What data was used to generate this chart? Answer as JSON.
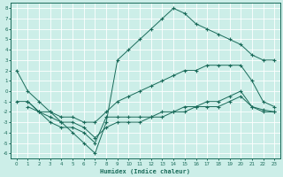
{
  "xlabel": "Humidex (Indice chaleur)",
  "bg_color": "#cceee8",
  "line_color": "#1a6b5a",
  "xlim": [
    -0.5,
    23.5
  ],
  "ylim": [
    -6.5,
    8.5
  ],
  "yticks": [
    -6,
    -5,
    -4,
    -3,
    -2,
    -1,
    0,
    1,
    2,
    3,
    4,
    5,
    6,
    7,
    8
  ],
  "xticks": [
    0,
    1,
    2,
    3,
    4,
    5,
    6,
    7,
    8,
    9,
    10,
    11,
    12,
    13,
    14,
    15,
    16,
    17,
    18,
    19,
    20,
    21,
    22,
    23
  ],
  "line1_x": [
    0,
    1,
    2,
    3,
    4,
    5,
    6,
    7,
    8,
    9,
    10,
    11,
    12,
    13,
    14,
    15,
    16,
    17,
    18,
    19,
    20,
    21,
    22,
    23
  ],
  "line1_y": [
    2,
    0,
    -1,
    -2,
    -3,
    -4,
    -5,
    -6,
    -3,
    3,
    4,
    5,
    6,
    7,
    8,
    7.5,
    6.5,
    6,
    5.5,
    5,
    4.5,
    3.5,
    3,
    3
  ],
  "line2_x": [
    0,
    1,
    2,
    3,
    4,
    5,
    6,
    7,
    8,
    9,
    10,
    11,
    12,
    13,
    14,
    15,
    16,
    17,
    18,
    19,
    20,
    21,
    22,
    23
  ],
  "line2_y": [
    -1,
    -1,
    -2,
    -2,
    -2.5,
    -2.5,
    -3,
    -3,
    -2,
    -1,
    -0.5,
    0,
    0.5,
    1,
    1.5,
    2,
    2,
    2.5,
    2.5,
    2.5,
    2.5,
    1,
    -1,
    -1.5
  ],
  "line3_x": [
    1,
    2,
    3,
    4,
    5,
    6,
    7,
    8,
    9,
    10,
    11,
    12,
    13,
    14,
    15,
    16,
    17,
    18,
    19,
    20,
    21,
    22,
    23
  ],
  "line3_y": [
    -1,
    -2,
    -2.5,
    -3,
    -3,
    -3.5,
    -4.5,
    -3.5,
    -3,
    -3,
    -3,
    -2.5,
    -2.5,
    -2,
    -2,
    -1.5,
    -1.5,
    -1.5,
    -1,
    -0.5,
    -1.5,
    -2,
    -2
  ],
  "line4_x": [
    1,
    2,
    3,
    4,
    5,
    6,
    7,
    8,
    9,
    10,
    11,
    12,
    13,
    14,
    15,
    16,
    17,
    18,
    19,
    20,
    21,
    22,
    23
  ],
  "line4_y": [
    -1.5,
    -2,
    -3,
    -3.5,
    -3.5,
    -4,
    -5,
    -2.5,
    -2.5,
    -2.5,
    -2.5,
    -2.5,
    -2,
    -2,
    -1.5,
    -1.5,
    -1,
    -1,
    -0.5,
    0,
    -1.5,
    -1.8,
    -2
  ]
}
